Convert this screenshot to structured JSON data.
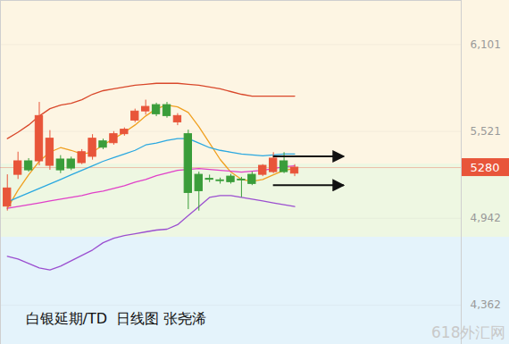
{
  "chart_data": {
    "type": "candlestick",
    "title": "白银延期/TD  日线图 张尧浠",
    "categories": [
      null,
      null,
      null,
      null,
      null,
      null,
      null,
      null,
      null,
      null,
      null,
      null,
      null,
      null,
      null,
      null,
      null,
      null,
      null,
      null,
      null,
      null,
      null,
      null,
      null,
      null,
      null,
      null,
      null,
      null,
      null,
      null,
      null,
      null,
      null,
      null,
      null,
      null,
      null,
      null,
      null,
      null,
      null
    ],
    "series": [
      {
        "type": "candlestick",
        "open": [
          5020,
          5232,
          5322,
          5322,
          5292,
          5334,
          5334,
          5310,
          5352,
          5455,
          5443,
          5503,
          5594,
          5655,
          5697,
          5697,
          5582,
          5503,
          5232,
          5205,
          5195,
          5220,
          5200,
          5232,
          5232,
          5250,
          5322,
          5240,
          null,
          null,
          null,
          null,
          null,
          null,
          null,
          null,
          null,
          null,
          null,
          null,
          null,
          null,
          null
        ],
        "high": [
          5232,
          5383,
          5340,
          5715,
          5527,
          5360,
          5350,
          5400,
          5500,
          5470,
          5520,
          5545,
          5670,
          5730,
          5710,
          5715,
          5640,
          5530,
          5250,
          5230,
          5210,
          5235,
          5215,
          5250,
          5300,
          5380,
          5380,
          5300,
          null,
          null,
          null,
          null,
          null,
          null,
          null,
          null,
          null,
          null,
          null,
          null,
          null,
          null,
          null
        ],
        "low": [
          4990,
          5201,
          5250,
          5292,
          5262,
          5240,
          5260,
          5300,
          5330,
          5400,
          5430,
          5490,
          5580,
          5630,
          5620,
          5610,
          5560,
          5000,
          4990,
          5180,
          5170,
          5170,
          5080,
          5160,
          5220,
          5240,
          5240,
          5220,
          null,
          null,
          null,
          null,
          null,
          null,
          null,
          null,
          null,
          null,
          null,
          null,
          null,
          null,
          null
        ],
        "close": [
          5141,
          5322,
          5262,
          5624,
          5473,
          5262,
          5274,
          5383,
          5473,
          5413,
          5503,
          5533,
          5654,
          5685,
          5636,
          5624,
          5624,
          5111,
          5123,
          5199,
          5190,
          5183,
          5195,
          5171,
          5292,
          5340,
          5250,
          5280,
          null,
          null,
          null,
          null,
          null,
          null,
          null,
          null,
          null,
          null,
          null,
          null,
          null,
          null,
          null
        ],
        "colors": [
          "#e8553a",
          "#e8553a",
          "#3a9d3a",
          "#e8553a",
          "#e8553a",
          "#3a9d3a",
          "#3a9d3a",
          "#e8553a",
          "#e8553a",
          "#3a9d3a",
          "#e8553a",
          "#e8553a",
          "#e8553a",
          "#e8553a",
          "#3a9d3a",
          "#3a9d3a",
          "#e8553a",
          "#3a9d3a",
          "#3a9d3a",
          "#3a9d3a",
          "#3a9d3a",
          "#3a9d3a",
          "#3a9d3a",
          "#3a9d3a",
          "#e8553a",
          "#e8553a",
          "#3a9d3a",
          "#e8553a",
          null,
          null,
          null,
          null,
          null,
          null,
          null,
          null,
          null,
          null,
          null,
          null,
          null,
          null,
          null
        ]
      },
      {
        "type": "line",
        "color": "#d9482b",
        "values": [
          5473,
          5516,
          5564,
          5624,
          5673,
          5697,
          5709,
          5733,
          5769,
          5793,
          5805,
          5818,
          5830,
          5836,
          5842,
          5842,
          5842,
          5836,
          5830,
          5818,
          5805,
          5787,
          5769,
          5757,
          5757,
          5757,
          5757,
          5757,
          null,
          null,
          null,
          null,
          null,
          null,
          null,
          null,
          null,
          null,
          null,
          null,
          null,
          null,
          null
        ]
      },
      {
        "type": "line",
        "color": "#f0a020",
        "values": [
          5008,
          5129,
          5232,
          5322,
          5383,
          5413,
          5395,
          5371,
          5383,
          5431,
          5473,
          5516,
          5564,
          5624,
          5673,
          5697,
          5685,
          5648,
          5552,
          5443,
          5334,
          5250,
          5201,
          5189,
          5201,
          5232,
          5262,
          5274,
          null,
          null,
          null,
          null,
          null,
          null,
          null,
          null,
          null,
          null,
          null,
          null,
          null,
          null,
          null
        ]
      },
      {
        "type": "line",
        "color": "#2aa8e0",
        "values": [
          5050,
          5081,
          5111,
          5141,
          5171,
          5201,
          5232,
          5262,
          5292,
          5322,
          5346,
          5371,
          5395,
          5431,
          5443,
          5461,
          5473,
          5473,
          5443,
          5413,
          5395,
          5383,
          5371,
          5365,
          5359,
          5365,
          5371,
          5371,
          null,
          null,
          null,
          null,
          null,
          null,
          null,
          null,
          null,
          null,
          null,
          null,
          null,
          null,
          null
        ]
      },
      {
        "type": "line",
        "color": "#e040c8",
        "values": [
          5008,
          5020,
          5032,
          5044,
          5057,
          5069,
          5081,
          5093,
          5111,
          5123,
          5141,
          5159,
          5183,
          5201,
          5226,
          5244,
          5262,
          5268,
          5274,
          5268,
          5262,
          5256,
          5250,
          5256,
          5262,
          5274,
          5286,
          5292,
          null,
          null,
          null,
          null,
          null,
          null,
          null,
          null,
          null,
          null,
          null,
          null,
          null,
          null,
          null
        ]
      },
      {
        "type": "line",
        "color": "#9b4fd0",
        "values": [
          4688,
          4670,
          4640,
          4610,
          4597,
          4622,
          4658,
          4694,
          4730,
          4779,
          4809,
          4827,
          4839,
          4851,
          4863,
          4869,
          4899,
          4960,
          5020,
          5081,
          5093,
          5093,
          5081,
          5069,
          5057,
          5044,
          5032,
          5020,
          null,
          null,
          null,
          null,
          null,
          null,
          null,
          null,
          null,
          null,
          null,
          null,
          null,
          null,
          null
        ]
      }
    ],
    "ylim": [
      4100,
      6395
    ],
    "yticks": [
      4362,
      4942,
      5521,
      6101
    ],
    "grid": true,
    "tick_labels": "y",
    "arrows": [
      5352,
      5159
    ],
    "annotations": [
      {
        "text": "5280",
        "y": 5280
      },
      {
        "text": "618外汇网"
      }
    ]
  }
}
